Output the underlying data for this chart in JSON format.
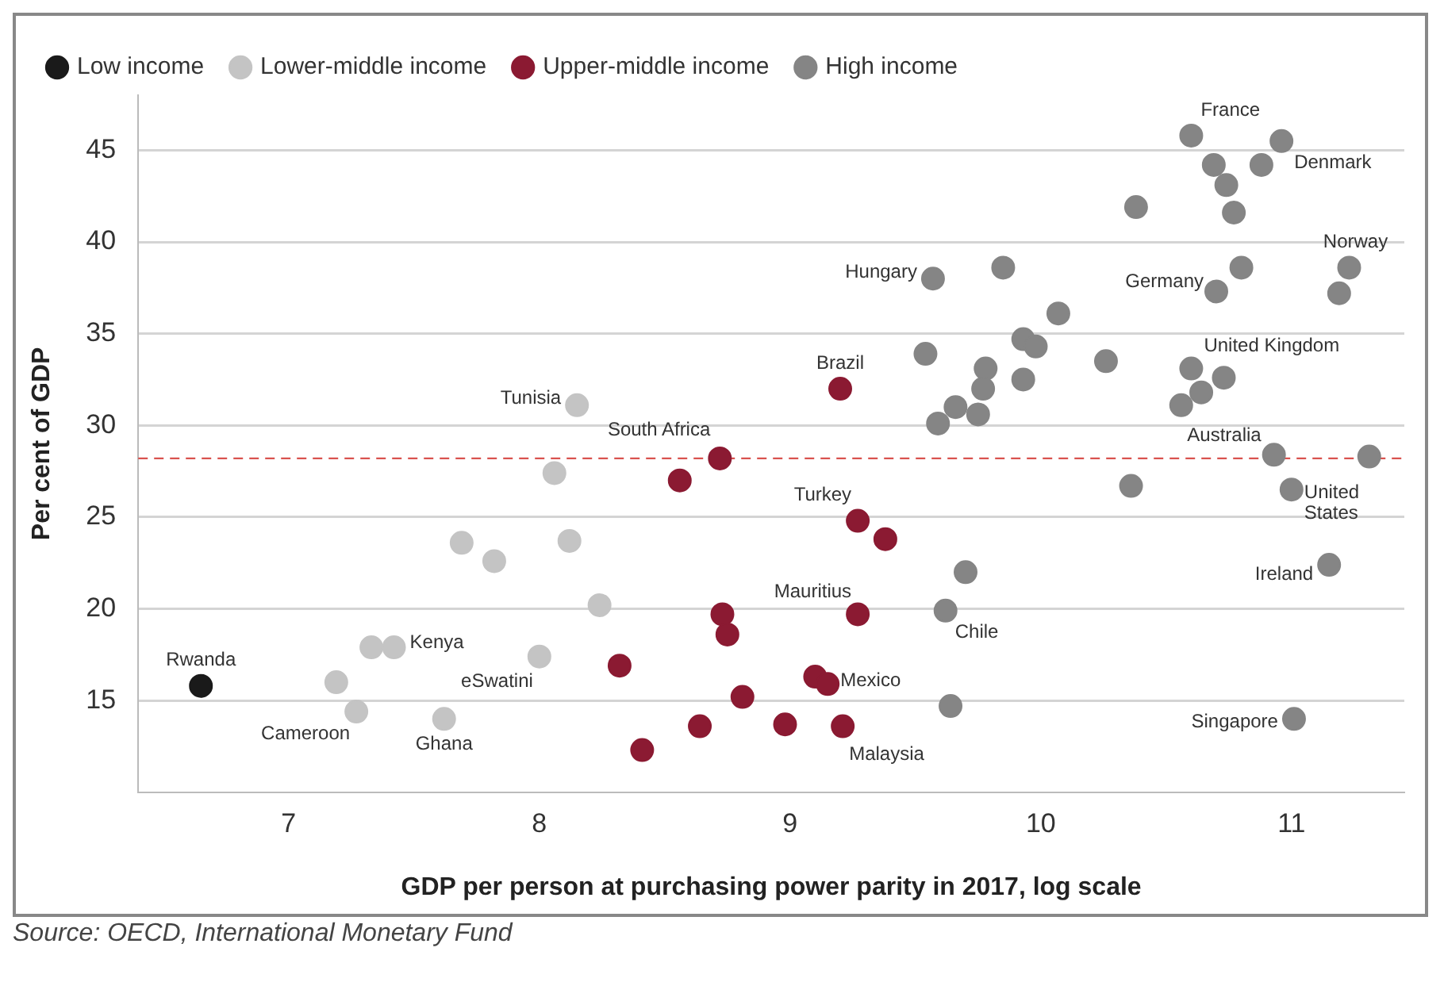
{
  "chart_data": {
    "type": "scatter",
    "xlabel": "GDP per person at purchasing power parity in 2017, log scale",
    "ylabel": "Per cent of GDP",
    "xlim": [
      6.4,
      11.45
    ],
    "xticks": [
      7,
      8,
      9,
      10,
      11
    ],
    "ylim": [
      10,
      48
    ],
    "yticks": [
      15,
      20,
      25,
      30,
      35,
      40,
      45
    ],
    "grid": "y",
    "legend": "top",
    "marker": "circle",
    "series": [
      {
        "name": "Low income",
        "color": "#1a1a1a",
        "x": [
          6.65
        ],
        "values": [
          15.8
        ]
      },
      {
        "name": "Lower-middle income",
        "color": "#c4c4c4",
        "x": [
          8.15,
          8.06,
          7.69,
          7.82,
          8.12,
          8.24,
          7.42,
          7.33,
          7.19,
          7.27,
          7.62,
          8.0
        ],
        "values": [
          31.1,
          27.4,
          23.6,
          22.6,
          23.7,
          20.2,
          17.9,
          17.9,
          16.0,
          14.4,
          14.0,
          17.4
        ]
      },
      {
        "name": "Upper-middle income",
        "color": "#8b1a32",
        "x": [
          9.2,
          8.72,
          8.56,
          9.27,
          9.38,
          9.27,
          8.73,
          8.75,
          9.1,
          9.15,
          8.81,
          8.32,
          8.41,
          8.64,
          8.98,
          9.21
        ],
        "values": [
          32.0,
          28.2,
          27.0,
          24.8,
          23.8,
          19.7,
          19.7,
          18.6,
          16.3,
          15.9,
          15.2,
          16.9,
          12.3,
          13.6,
          13.7,
          13.6
        ]
      },
      {
        "name": "High income",
        "color": "#858585",
        "x": [
          10.6,
          10.96,
          10.69,
          10.88,
          10.74,
          10.38,
          10.77,
          11.23,
          11.19,
          10.8,
          10.7,
          9.85,
          9.57,
          10.07,
          9.54,
          9.93,
          9.98,
          10.26,
          9.93,
          9.78,
          9.77,
          9.66,
          9.75,
          9.59,
          10.6,
          10.73,
          10.64,
          10.56,
          10.93,
          11.31,
          10.36,
          11.0,
          11.15,
          9.7,
          9.62,
          9.64,
          11.01
        ],
        "values": [
          45.8,
          45.5,
          44.2,
          44.2,
          43.1,
          41.9,
          41.6,
          38.6,
          37.2,
          38.6,
          37.3,
          38.6,
          38.0,
          36.1,
          33.9,
          34.7,
          34.3,
          33.5,
          32.5,
          33.1,
          32.0,
          31.0,
          30.6,
          30.1,
          33.1,
          32.6,
          31.8,
          31.1,
          28.4,
          28.3,
          26.7,
          26.5,
          22.4,
          22.0,
          19.9,
          14.7,
          14.0
        ]
      }
    ],
    "ref_lines": [
      {
        "axis": "y",
        "value": 28.2,
        "color": "#d9534f",
        "line_style": "dashed"
      }
    ],
    "annotations": [
      {
        "text": "Rwanda",
        "x": 6.65,
        "y": 15.8
      },
      {
        "text": "Tunisia",
        "x": 8.15,
        "y": 31.1
      },
      {
        "text": "Kenya",
        "x": 7.42,
        "y": 17.9
      },
      {
        "text": "Cameroon",
        "x": 7.27,
        "y": 14.4
      },
      {
        "text": "Ghana",
        "x": 7.62,
        "y": 14.0
      },
      {
        "text": "eSwatini",
        "x": 8.0,
        "y": 17.4
      },
      {
        "text": "Brazil",
        "x": 9.2,
        "y": 32.0
      },
      {
        "text": "South Africa",
        "x": 8.72,
        "y": 28.2
      },
      {
        "text": "Turkey",
        "x": 9.27,
        "y": 24.8
      },
      {
        "text": "Mauritius",
        "x": 9.27,
        "y": 19.7
      },
      {
        "text": "Mexico",
        "x": 9.15,
        "y": 15.9
      },
      {
        "text": "Malaysia",
        "x": 9.21,
        "y": 13.6
      },
      {
        "text": "France",
        "x": 10.6,
        "y": 45.8
      },
      {
        "text": "Denmark",
        "x": 10.96,
        "y": 45.5
      },
      {
        "text": "Norway",
        "x": 11.23,
        "y": 38.6
      },
      {
        "text": "Germany",
        "x": 10.7,
        "y": 37.3
      },
      {
        "text": "Hungary",
        "x": 9.57,
        "y": 38.0
      },
      {
        "text": "United Kingdom",
        "x": 10.6,
        "y": 33.1
      },
      {
        "text": "Australia",
        "x": 10.93,
        "y": 28.4
      },
      {
        "text": "United States",
        "x": 11.0,
        "y": 26.5
      },
      {
        "text": "Ireland",
        "x": 11.15,
        "y": 22.4
      },
      {
        "text": "Chile",
        "x": 9.62,
        "y": 19.9
      },
      {
        "text": "Singapore",
        "x": 11.01,
        "y": 14.0
      },
      "Source: OECD, International Monetary Fund"
    ]
  }
}
